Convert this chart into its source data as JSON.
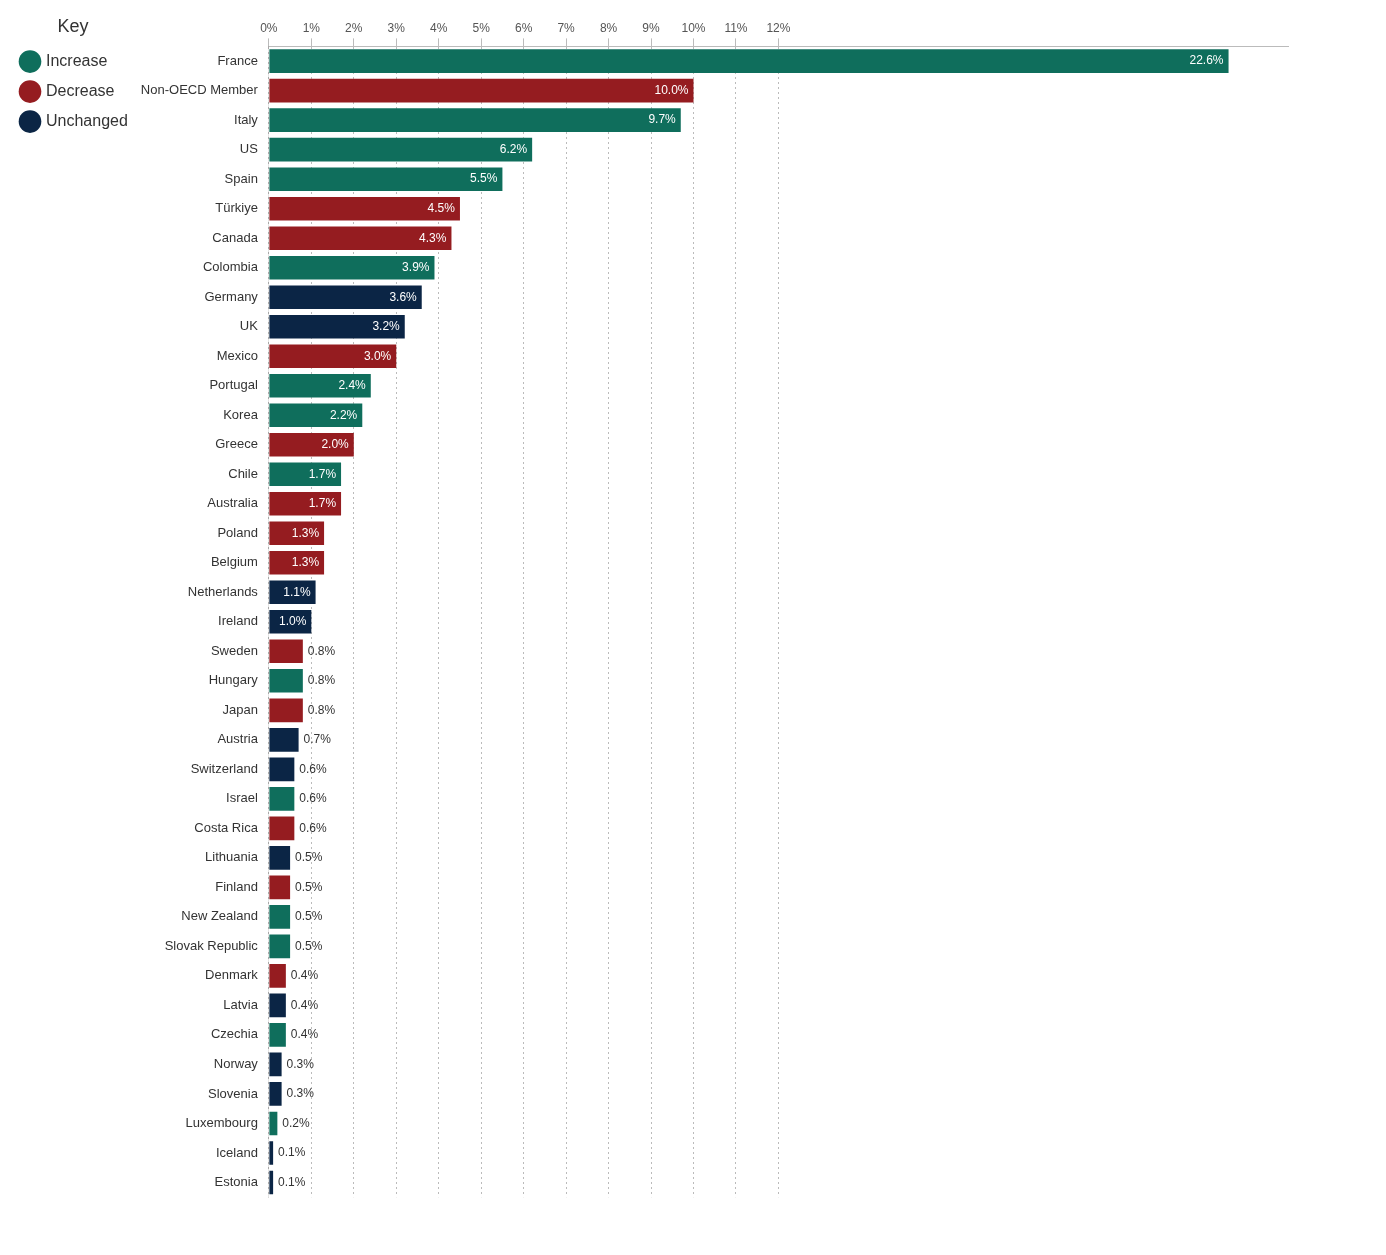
{
  "chart_data": {
    "type": "bar",
    "orientation": "horizontal",
    "legend": "top left",
    "legend_title": "Key",
    "grid": "x",
    "categories": [
      "France",
      "Non-OECD Member",
      "Italy",
      "US",
      "Spain",
      "Türkiye",
      "Canada",
      "Colombia",
      "Germany",
      "UK",
      "Mexico",
      "Portugal",
      "Korea",
      "Greece",
      "Chile",
      "Australia",
      "Poland",
      "Belgium",
      "Netherlands",
      "Ireland",
      "Sweden",
      "Hungary",
      "Japan",
      "Austria",
      "Switzerland",
      "Israel",
      "Costa Rica",
      "Lithuania",
      "Finland",
      "New Zealand",
      "Slovak Republic",
      "Denmark",
      "Latvia",
      "Czechia",
      "Norway",
      "Slovenia",
      "Luxembourg",
      "Iceland",
      "Estonia"
    ],
    "xlim": [
      0,
      24
    ],
    "xticks": [
      {
        "value": 0,
        "label": "0%"
      },
      {
        "value": 1,
        "label": "1%"
      },
      {
        "value": 2,
        "label": "2%"
      },
      {
        "value": 3,
        "label": "3%"
      },
      {
        "value": 4,
        "label": "4%"
      },
      {
        "value": 5,
        "label": "5%"
      },
      {
        "value": 6,
        "label": "6%"
      },
      {
        "value": 7,
        "label": "7%"
      },
      {
        "value": 8,
        "label": "8%"
      },
      {
        "value": 9,
        "label": "9%"
      },
      {
        "value": 10,
        "label": "10%"
      },
      {
        "value": 11,
        "label": "11%"
      },
      {
        "value": 12,
        "label": "12%"
      }
    ],
    "series": [
      {
        "name": "Increase",
        "color": "#0f6e5c",
        "values": [
          22.6,
          null,
          9.7,
          6.2,
          5.5,
          null,
          null,
          3.9,
          null,
          null,
          null,
          2.4,
          2.2,
          null,
          1.7,
          null,
          null,
          null,
          null,
          null,
          null,
          0.8,
          null,
          null,
          null,
          0.6,
          null,
          null,
          null,
          0.5,
          0.5,
          null,
          null,
          0.4,
          null,
          null,
          0.2,
          null,
          null
        ],
        "value_labels": [
          "22.6%",
          null,
          "9.7%",
          "6.2%",
          "5.5%",
          null,
          null,
          "3.9%",
          null,
          null,
          null,
          "2.4%",
          "2.2%",
          null,
          "1.7%",
          null,
          null,
          null,
          null,
          null,
          null,
          "0.8%",
          null,
          null,
          null,
          "0.6%",
          null,
          null,
          null,
          "0.5%",
          "0.5%",
          null,
          null,
          "0.4%",
          null,
          null,
          "0.2%",
          null,
          null
        ]
      },
      {
        "name": "Decrease",
        "color": "#951c20",
        "values": [
          null,
          10.0,
          null,
          null,
          null,
          4.5,
          4.3,
          null,
          null,
          null,
          3.0,
          null,
          null,
          2.0,
          null,
          1.7,
          1.3,
          1.3,
          null,
          null,
          0.8,
          null,
          0.8,
          null,
          null,
          null,
          0.6,
          null,
          0.5,
          null,
          null,
          0.4,
          null,
          null,
          null,
          null,
          null,
          null,
          null
        ],
        "value_labels": [
          null,
          "10.0%",
          null,
          null,
          null,
          "4.5%",
          "4.3%",
          null,
          null,
          null,
          "3.0%",
          null,
          null,
          "2.0%",
          null,
          "1.7%",
          "1.3%",
          "1.3%",
          null,
          null,
          "0.8%",
          null,
          "0.8%",
          null,
          null,
          null,
          "0.6%",
          null,
          "0.5%",
          null,
          null,
          "0.4%",
          null,
          null,
          null,
          null,
          null,
          null,
          null
        ]
      },
      {
        "name": "Unchanged",
        "color": "#0b2545",
        "values": [
          null,
          null,
          null,
          null,
          null,
          null,
          null,
          null,
          3.6,
          3.2,
          null,
          null,
          null,
          null,
          null,
          null,
          null,
          null,
          1.1,
          1.0,
          null,
          null,
          null,
          0.7,
          0.6,
          null,
          null,
          0.5,
          null,
          null,
          null,
          null,
          0.4,
          null,
          0.3,
          0.3,
          null,
          0.1,
          0.1
        ],
        "value_labels": [
          null,
          null,
          null,
          null,
          null,
          null,
          null,
          null,
          "3.6%",
          "3.2%",
          null,
          null,
          null,
          null,
          null,
          null,
          null,
          null,
          "1.1%",
          "1.0%",
          null,
          null,
          null,
          "0.7%",
          "0.6%",
          null,
          null,
          "0.5%",
          null,
          null,
          null,
          null,
          "0.4%",
          null,
          "0.3%",
          "0.3%",
          null,
          "0.1%",
          "0.1%"
        ]
      }
    ]
  }
}
